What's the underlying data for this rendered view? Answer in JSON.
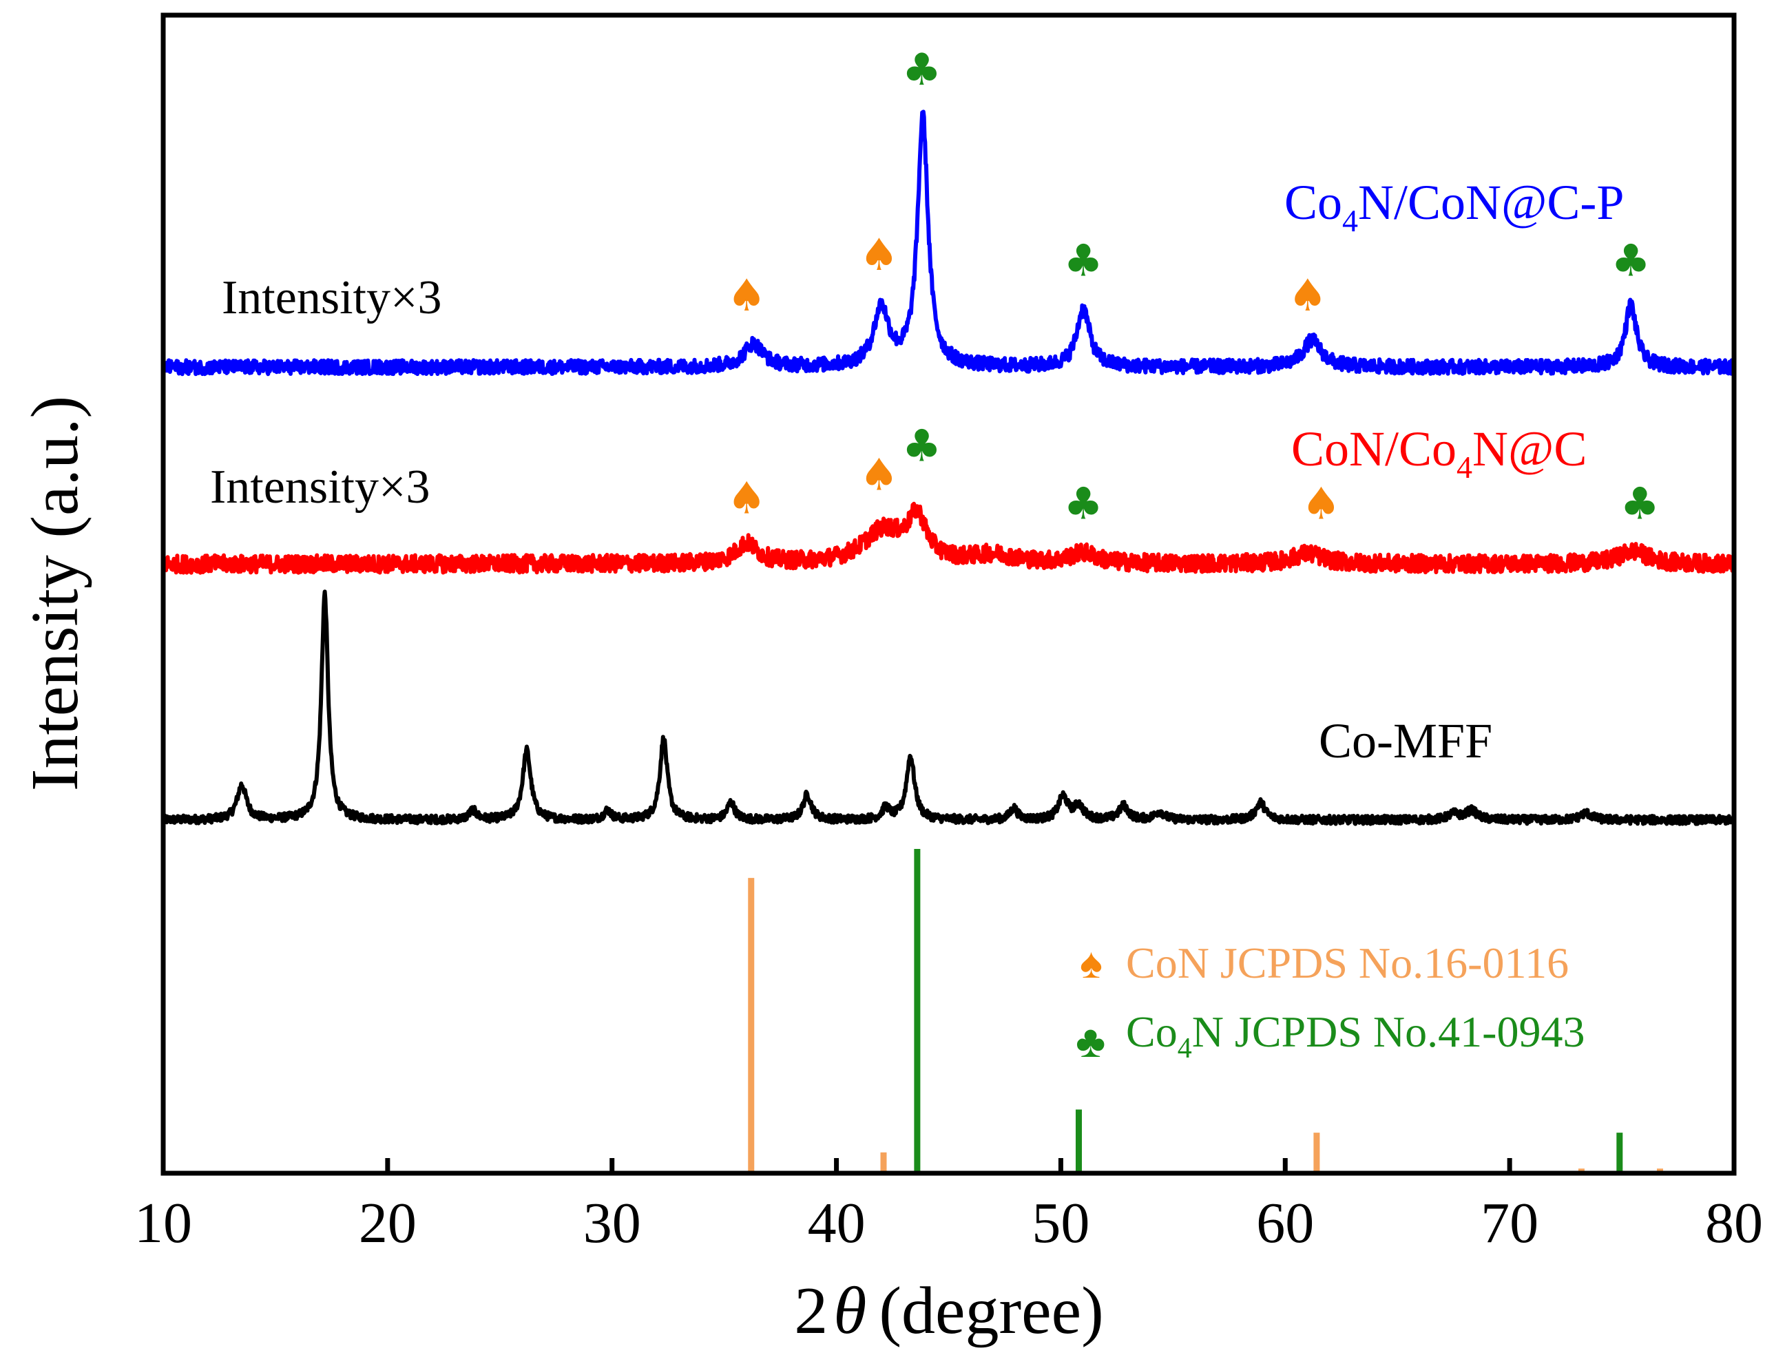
{
  "chart_data": {
    "type": "line",
    "title": "",
    "xlabel_prefix": "2",
    "xlabel_symbol": "θ",
    "xlabel_suffix": "(degree)",
    "ylabel": "Intensity (a.u.)",
    "xlim": [
      10,
      80
    ],
    "ylim": [
      0,
      100
    ],
    "xticks": [
      10,
      20,
      30,
      40,
      50,
      60,
      70,
      80
    ],
    "xtick_labels": [
      "10",
      "20",
      "30",
      "40",
      "50",
      "60",
      "70",
      "80"
    ],
    "grid": false,
    "series": [
      {
        "name": "Co-MFF",
        "label": "Co-MFF",
        "color": "#000000",
        "baseline": 30.5,
        "noise": 0.35,
        "peaks": [
          {
            "x": 13.5,
            "h": 3.0,
            "w": 0.25
          },
          {
            "x": 17.2,
            "h": 19.5,
            "w": 0.18
          },
          {
            "x": 23.8,
            "h": 0.8,
            "w": 0.2
          },
          {
            "x": 26.2,
            "h": 6.0,
            "w": 0.22
          },
          {
            "x": 29.8,
            "h": 0.8,
            "w": 0.2
          },
          {
            "x": 32.3,
            "h": 7.0,
            "w": 0.2
          },
          {
            "x": 35.3,
            "h": 1.5,
            "w": 0.2
          },
          {
            "x": 38.7,
            "h": 2.2,
            "w": 0.22
          },
          {
            "x": 42.2,
            "h": 1.0,
            "w": 0.2
          },
          {
            "x": 43.3,
            "h": 5.5,
            "w": 0.22
          },
          {
            "x": 47.9,
            "h": 1.0,
            "w": 0.2
          },
          {
            "x": 50.1,
            "h": 2.0,
            "w": 0.25
          },
          {
            "x": 50.8,
            "h": 1.2,
            "w": 0.25
          },
          {
            "x": 52.8,
            "h": 1.2,
            "w": 0.25
          },
          {
            "x": 54.4,
            "h": 0.7,
            "w": 0.25
          },
          {
            "x": 58.9,
            "h": 1.5,
            "w": 0.25
          },
          {
            "x": 67.5,
            "h": 0.5,
            "w": 0.3
          },
          {
            "x": 68.3,
            "h": 0.8,
            "w": 0.3
          },
          {
            "x": 73.4,
            "h": 0.6,
            "w": 0.3
          }
        ]
      },
      {
        "name": "CoN/Co4N@C",
        "label_parts": [
          "CoN/Co",
          "4",
          "N@C"
        ],
        "multiplier_label": "Intensity×3",
        "color": "#ff0000",
        "baseline": 52.6,
        "noise": 0.75,
        "peaks": [
          {
            "x": 36.0,
            "h": 1.7,
            "w": 0.6
          },
          {
            "x": 42.1,
            "h": 2.8,
            "w": 1.1
          },
          {
            "x": 43.6,
            "h": 3.6,
            "w": 0.5
          },
          {
            "x": 47.0,
            "h": 0.7,
            "w": 1.2
          },
          {
            "x": 51.0,
            "h": 0.9,
            "w": 0.7
          },
          {
            "x": 61.0,
            "h": 0.9,
            "w": 0.8
          },
          {
            "x": 75.5,
            "h": 1.1,
            "w": 0.8
          }
        ]
      },
      {
        "name": "Co4N/CoN@C-P",
        "label_parts": [
          "Co",
          "4",
          "N/CoN@C-P"
        ],
        "multiplier_label": "Intensity×3",
        "color": "#0000ff",
        "baseline": 69.6,
        "noise": 0.6,
        "peaks": [
          {
            "x": 36.3,
            "h": 2.0,
            "w": 0.5
          },
          {
            "x": 42.0,
            "h": 5.0,
            "w": 0.4
          },
          {
            "x": 43.85,
            "h": 21.5,
            "w": 0.28
          },
          {
            "x": 51.0,
            "h": 5.0,
            "w": 0.35
          },
          {
            "x": 61.2,
            "h": 2.3,
            "w": 0.5
          },
          {
            "x": 75.4,
            "h": 5.4,
            "w": 0.3
          }
        ]
      }
    ],
    "markers": [
      {
        "symbol": "♠",
        "color": "#f7870c",
        "x": 36.0,
        "y": 74.5
      },
      {
        "symbol": "♠",
        "color": "#f7870c",
        "x": 41.9,
        "y": 78.0
      },
      {
        "symbol": "♣",
        "color": "#1a8c1a",
        "x": 43.8,
        "y": 94.0
      },
      {
        "symbol": "♣",
        "color": "#1a8c1a",
        "x": 51.0,
        "y": 77.5
      },
      {
        "symbol": "♠",
        "color": "#f7870c",
        "x": 61.0,
        "y": 74.5
      },
      {
        "symbol": "♣",
        "color": "#1a8c1a",
        "x": 75.4,
        "y": 77.5
      },
      {
        "symbol": "♠",
        "color": "#f7870c",
        "x": 36.0,
        "y": 57.0
      },
      {
        "symbol": "♠",
        "color": "#f7870c",
        "x": 41.9,
        "y": 59.0
      },
      {
        "symbol": "♣",
        "color": "#1a8c1a",
        "x": 43.8,
        "y": 61.5
      },
      {
        "symbol": "♣",
        "color": "#1a8c1a",
        "x": 51.0,
        "y": 56.5
      },
      {
        "symbol": "♠",
        "color": "#f7870c",
        "x": 61.6,
        "y": 56.5
      },
      {
        "symbol": "♣",
        "color": "#1a8c1a",
        "x": 75.8,
        "y": 56.5
      }
    ],
    "reference_sets": [
      {
        "name": "CoN",
        "label": "CoN JCPDS No.16-0116",
        "symbol": "♠",
        "color": "#f5a25a",
        "symbol_color": "#f7870c",
        "lines": [
          {
            "x": 36.2,
            "h": 25.5
          },
          {
            "x": 42.1,
            "h": 1.8
          },
          {
            "x": 61.4,
            "h": 3.5
          },
          {
            "x": 73.2,
            "h": 0.4
          },
          {
            "x": 76.7,
            "h": 0.4
          }
        ]
      },
      {
        "name": "Co4N",
        "label_parts": [
          "Co",
          "4",
          "N JCPDS No.41-0943"
        ],
        "symbol": "♣",
        "color": "#1a8c1a",
        "symbol_color": "#1a8c1a",
        "lines": [
          {
            "x": 43.6,
            "h": 28.0
          },
          {
            "x": 50.8,
            "h": 5.5
          },
          {
            "x": 74.9,
            "h": 3.5
          }
        ]
      }
    ]
  }
}
